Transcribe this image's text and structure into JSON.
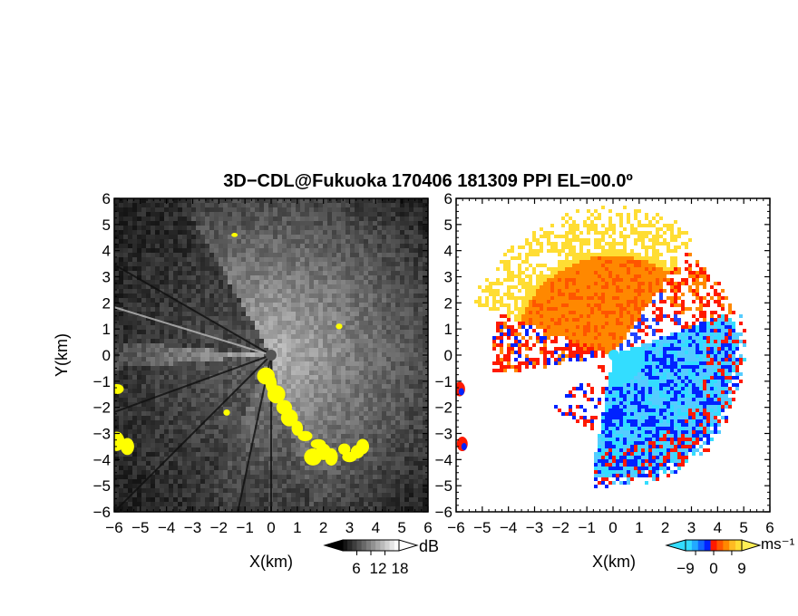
{
  "title": "3D−CDL@Fukuoka 170406 181309 PPI EL=00.0º",
  "colors": {
    "background_dark": "#1a1a1a",
    "highlight": "#ffff00",
    "cool_light": "#33ddff",
    "cool_dark": "#0022ff",
    "red": "#ff1a00",
    "orange": "#ff8800",
    "yellow": "#ffdd33"
  },
  "chart_data": [
    {
      "type": "heatmap",
      "panel": "left",
      "title": "",
      "xlabel": "X(km)",
      "ylabel": "Y(km)",
      "xlim": [
        -6,
        6
      ],
      "ylim": [
        -6,
        6
      ],
      "xticks": [
        "−6",
        "−5",
        "−4",
        "−3",
        "−2",
        "−1",
        "0",
        "1",
        "2",
        "3",
        "4",
        "5",
        "6"
      ],
      "yticks": [
        "−6",
        "−5",
        "−4",
        "−3",
        "−2",
        "−1",
        "0",
        "1",
        "2",
        "3",
        "4",
        "5",
        "6"
      ],
      "colorbar": {
        "unit": "dB",
        "tick_labels": [
          "6",
          "12",
          "18"
        ],
        "ticks": [
          6,
          12,
          18
        ],
        "range": [
          0,
          24
        ],
        "palette": "grayscale"
      },
      "highlight_color": "#ffff00"
    },
    {
      "type": "heatmap",
      "panel": "right",
      "title": "",
      "xlabel": "X(km)",
      "ylabel": "",
      "xlim": [
        -6,
        6
      ],
      "ylim": [
        -6,
        6
      ],
      "xticks": [
        "−6",
        "−5",
        "−4",
        "−3",
        "−2",
        "−1",
        "0",
        "1",
        "2",
        "3",
        "4",
        "5",
        "6"
      ],
      "yticks": [
        "−6",
        "−5",
        "−4",
        "−3",
        "−2",
        "−1",
        "0",
        "1",
        "2",
        "3",
        "4",
        "5",
        "6"
      ],
      "colorbar": {
        "unit": "ms⁻¹",
        "tick_labels": [
          "−9",
          "0",
          "9"
        ],
        "ticks": [
          -9,
          0,
          9
        ],
        "range": [
          -14,
          14
        ],
        "palette": "cyan-blue-red-orange-yellow"
      }
    }
  ]
}
